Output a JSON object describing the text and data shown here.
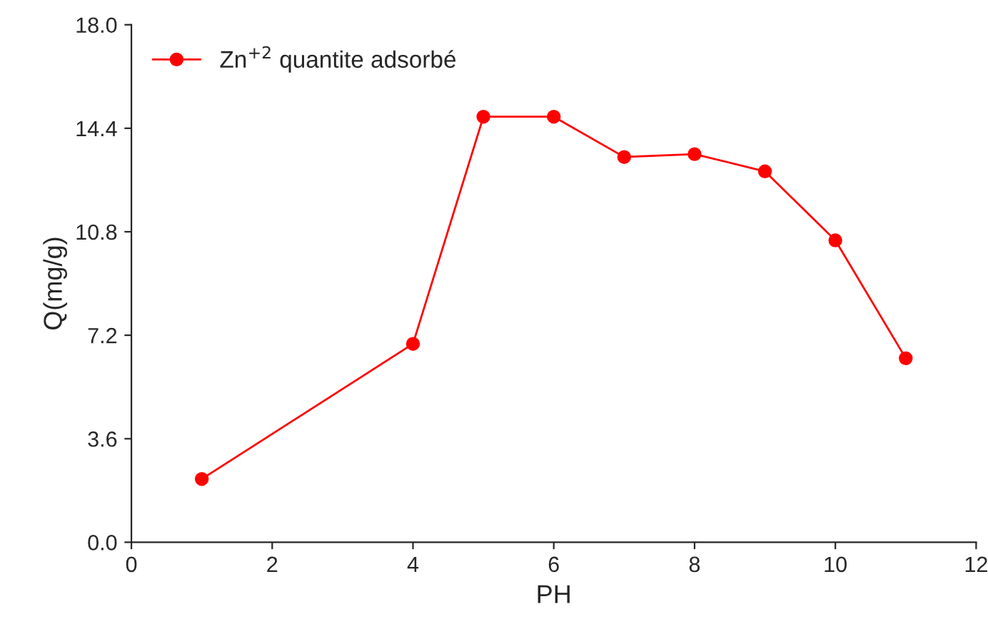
{
  "chart_data": {
    "type": "line",
    "xlabel": "PH",
    "ylabel": "Q(mg/g)",
    "x": [
      1,
      4,
      5,
      6,
      7,
      8,
      9,
      10,
      11
    ],
    "series": [
      {
        "name": "Zn$^{+2}$ quantite adsorbé",
        "color": "#ff0000",
        "values": [
          2.2,
          6.9,
          14.8,
          14.8,
          13.4,
          13.5,
          12.9,
          10.5,
          6.4
        ]
      }
    ],
    "xlim": [
      0,
      12
    ],
    "xticks": [
      0,
      2,
      4,
      6,
      8,
      10,
      12
    ],
    "ylim": [
      0,
      18
    ],
    "yticks": [
      {
        "value": 0,
        "label": "0.0"
      },
      {
        "value": 3.6,
        "label": "3.6"
      },
      {
        "value": 7.2,
        "label": "7.2"
      },
      {
        "value": 10.8,
        "label": "10.8"
      },
      {
        "value": 14.4,
        "label": "14.4"
      },
      {
        "value": 18,
        "label": "18.0"
      }
    ],
    "marker": "circle",
    "line_style": "solid",
    "legend": "top left",
    "grid": false
  }
}
